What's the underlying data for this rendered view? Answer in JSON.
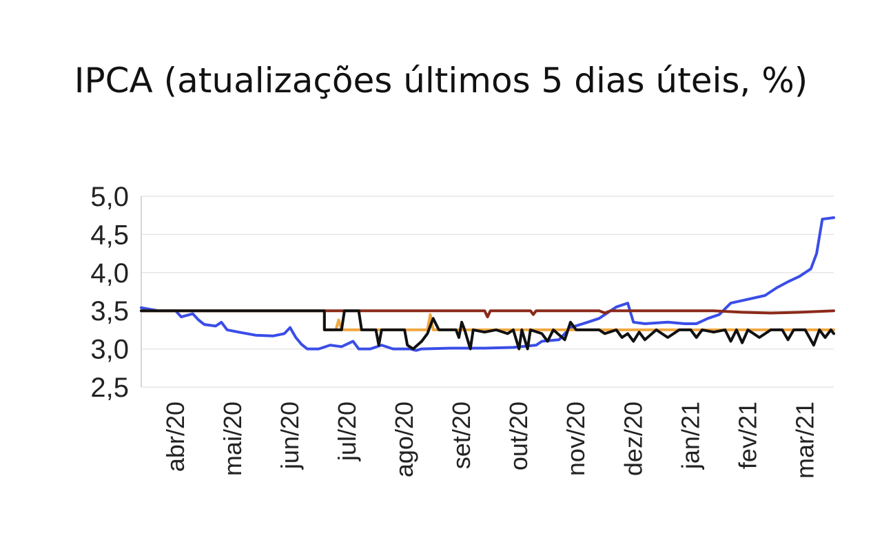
{
  "chart_data": {
    "type": "line",
    "title": "IPCA (atualizações últimos 5 dias úteis, %)",
    "xlabel": "",
    "ylabel": "",
    "ylim": [
      2.5,
      5.0
    ],
    "grid": true,
    "y_ticks": [
      "5,0",
      "4,5",
      "4,0",
      "3,5",
      "3,0",
      "2,5"
    ],
    "y_tick_values": [
      5.0,
      4.5,
      4.0,
      3.5,
      3.0,
      2.5
    ],
    "x_ticks": [
      "abr/20",
      "mai/20",
      "jun/20",
      "jul/20",
      "ago/20",
      "set/20",
      "out/20",
      "nov/20",
      "dez/20",
      "jan/21",
      "fev/21",
      "mar/21"
    ],
    "x_tick_positions": [
      0.6,
      1.6,
      2.6,
      3.6,
      4.6,
      5.6,
      6.6,
      7.6,
      8.6,
      9.6,
      10.6,
      11.6
    ],
    "xlim": [
      0,
      12.1
    ],
    "series": [
      {
        "color": "#3a4de8",
        "points": [
          [
            0,
            3.54
          ],
          [
            0.3,
            3.5
          ],
          [
            0.6,
            3.5
          ],
          [
            0.7,
            3.42
          ],
          [
            0.9,
            3.46
          ],
          [
            1.0,
            3.38
          ],
          [
            1.1,
            3.32
          ],
          [
            1.3,
            3.3
          ],
          [
            1.4,
            3.35
          ],
          [
            1.5,
            3.25
          ],
          [
            1.7,
            3.22
          ],
          [
            2.0,
            3.18
          ],
          [
            2.3,
            3.17
          ],
          [
            2.5,
            3.2
          ],
          [
            2.6,
            3.28
          ],
          [
            2.7,
            3.15
          ],
          [
            2.8,
            3.06
          ],
          [
            2.9,
            3.0
          ],
          [
            3.1,
            3.0
          ],
          [
            3.3,
            3.05
          ],
          [
            3.5,
            3.03
          ],
          [
            3.7,
            3.1
          ],
          [
            3.8,
            3.0
          ],
          [
            4.0,
            3.0
          ],
          [
            4.2,
            3.05
          ],
          [
            4.4,
            3.0
          ],
          [
            4.7,
            3.0
          ],
          [
            4.8,
            2.98
          ],
          [
            4.9,
            3.0
          ],
          [
            5.4,
            3.01
          ],
          [
            6.0,
            3.01
          ],
          [
            6.5,
            3.02
          ],
          [
            6.9,
            3.05
          ],
          [
            7.0,
            3.1
          ],
          [
            7.3,
            3.12
          ],
          [
            7.5,
            3.28
          ],
          [
            7.8,
            3.35
          ],
          [
            8.0,
            3.4
          ],
          [
            8.3,
            3.55
          ],
          [
            8.5,
            3.6
          ],
          [
            8.6,
            3.35
          ],
          [
            8.8,
            3.33
          ],
          [
            9.2,
            3.35
          ],
          [
            9.5,
            3.33
          ],
          [
            9.7,
            3.33
          ],
          [
            9.9,
            3.4
          ],
          [
            10.1,
            3.45
          ],
          [
            10.3,
            3.6
          ],
          [
            10.6,
            3.65
          ],
          [
            10.9,
            3.7
          ],
          [
            11.1,
            3.8
          ],
          [
            11.3,
            3.88
          ],
          [
            11.5,
            3.95
          ],
          [
            11.7,
            4.05
          ],
          [
            11.8,
            4.25
          ],
          [
            11.9,
            4.7
          ],
          [
            12.1,
            4.72
          ]
        ]
      },
      {
        "color": "#8b2a1a",
        "points": [
          [
            0,
            3.5
          ],
          [
            3.2,
            3.5
          ],
          [
            3.5,
            3.5
          ],
          [
            6.0,
            3.5
          ],
          [
            6.05,
            3.42
          ],
          [
            6.1,
            3.5
          ],
          [
            6.8,
            3.5
          ],
          [
            6.85,
            3.45
          ],
          [
            6.9,
            3.5
          ],
          [
            7.5,
            3.5
          ],
          [
            8.0,
            3.5
          ],
          [
            8.1,
            3.47
          ],
          [
            8.2,
            3.5
          ],
          [
            9.0,
            3.5
          ],
          [
            10.0,
            3.5
          ],
          [
            10.5,
            3.48
          ],
          [
            11.0,
            3.47
          ],
          [
            11.5,
            3.48
          ],
          [
            12.1,
            3.5
          ]
        ]
      },
      {
        "color": "#f0a840",
        "points": [
          [
            0,
            3.5
          ],
          [
            3.2,
            3.5
          ],
          [
            3.2,
            3.25
          ],
          [
            3.4,
            3.25
          ],
          [
            3.45,
            3.38
          ],
          [
            3.5,
            3.25
          ],
          [
            3.9,
            3.25
          ],
          [
            4.0,
            3.25
          ],
          [
            4.5,
            3.25
          ],
          [
            5.0,
            3.25
          ],
          [
            5.05,
            3.45
          ],
          [
            5.1,
            3.25
          ],
          [
            7.0,
            3.25
          ],
          [
            8.0,
            3.25
          ],
          [
            9.0,
            3.25
          ],
          [
            10.0,
            3.25
          ],
          [
            11.0,
            3.25
          ],
          [
            12.1,
            3.25
          ]
        ]
      },
      {
        "color": "#111111",
        "points": [
          [
            0,
            3.5
          ],
          [
            3.2,
            3.5
          ],
          [
            3.2,
            3.25
          ],
          [
            3.5,
            3.25
          ],
          [
            3.55,
            3.5
          ],
          [
            3.8,
            3.5
          ],
          [
            3.85,
            3.25
          ],
          [
            4.1,
            3.25
          ],
          [
            4.15,
            3.05
          ],
          [
            4.2,
            3.25
          ],
          [
            4.6,
            3.25
          ],
          [
            4.65,
            3.05
          ],
          [
            4.75,
            3.0
          ],
          [
            4.9,
            3.1
          ],
          [
            5.0,
            3.2
          ],
          [
            5.1,
            3.4
          ],
          [
            5.2,
            3.25
          ],
          [
            5.5,
            3.25
          ],
          [
            5.55,
            3.15
          ],
          [
            5.6,
            3.35
          ],
          [
            5.65,
            3.25
          ],
          [
            5.75,
            3.0
          ],
          [
            5.8,
            3.25
          ],
          [
            6.0,
            3.22
          ],
          [
            6.2,
            3.25
          ],
          [
            6.4,
            3.2
          ],
          [
            6.5,
            3.25
          ],
          [
            6.6,
            3.0
          ],
          [
            6.65,
            3.25
          ],
          [
            6.75,
            3.0
          ],
          [
            6.8,
            3.25
          ],
          [
            7.0,
            3.2
          ],
          [
            7.1,
            3.1
          ],
          [
            7.2,
            3.25
          ],
          [
            7.4,
            3.12
          ],
          [
            7.5,
            3.35
          ],
          [
            7.6,
            3.25
          ],
          [
            8.0,
            3.25
          ],
          [
            8.1,
            3.2
          ],
          [
            8.3,
            3.25
          ],
          [
            8.4,
            3.15
          ],
          [
            8.5,
            3.2
          ],
          [
            8.6,
            3.1
          ],
          [
            8.7,
            3.22
          ],
          [
            8.8,
            3.12
          ],
          [
            9.0,
            3.25
          ],
          [
            9.2,
            3.15
          ],
          [
            9.4,
            3.25
          ],
          [
            9.6,
            3.25
          ],
          [
            9.7,
            3.15
          ],
          [
            9.8,
            3.25
          ],
          [
            10.0,
            3.22
          ],
          [
            10.2,
            3.25
          ],
          [
            10.3,
            3.1
          ],
          [
            10.4,
            3.25
          ],
          [
            10.5,
            3.08
          ],
          [
            10.6,
            3.25
          ],
          [
            10.8,
            3.15
          ],
          [
            11.0,
            3.25
          ],
          [
            11.2,
            3.25
          ],
          [
            11.3,
            3.12
          ],
          [
            11.4,
            3.25
          ],
          [
            11.6,
            3.25
          ],
          [
            11.75,
            3.05
          ],
          [
            11.85,
            3.25
          ],
          [
            11.95,
            3.15
          ],
          [
            12.05,
            3.25
          ],
          [
            12.1,
            3.2
          ]
        ]
      }
    ]
  }
}
